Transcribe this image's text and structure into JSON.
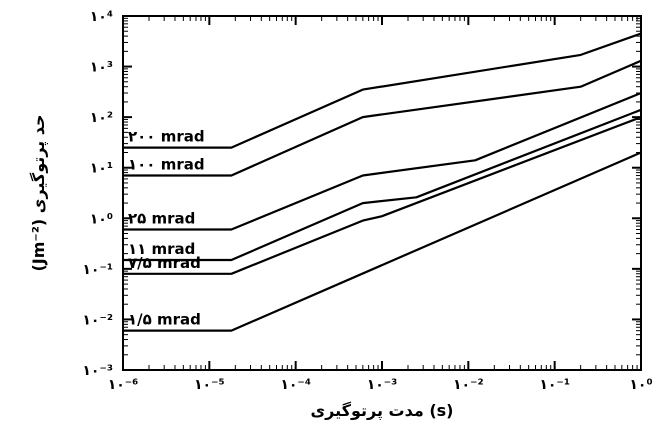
{
  "chart_data": {
    "type": "line",
    "title": "",
    "xlabel": "(s) مدت پرتوگیری",
    "ylabel": "حد پرتوگیری (Jm⁻²)",
    "xscale": "log",
    "yscale": "log",
    "xlim": [
      1e-06,
      1
    ],
    "ylim": [
      0.001,
      10000.0
    ],
    "grid": false,
    "x_ticks": [
      1e-06,
      1e-05,
      0.0001,
      0.001,
      0.01,
      0.1,
      1
    ],
    "x_tick_labels": [
      "۱۰⁻⁶",
      "۱۰⁻⁵",
      "۱۰⁻⁴",
      "۱۰⁻³",
      "۱۰⁻²",
      "۱۰⁻¹",
      "۱۰⁰"
    ],
    "y_ticks": [
      0.001,
      0.01,
      0.1,
      1,
      10,
      100,
      1000,
      10000
    ],
    "y_tick_labels": [
      "۱۰⁻³",
      "۱۰⁻²",
      "۱۰⁻¹",
      "۱۰⁰",
      "۱۰¹",
      "۱۰²",
      "۱۰³",
      "۱۰⁴"
    ],
    "series": [
      {
        "name": "۲۰۰ mrad",
        "x": [
          1e-06,
          1.8e-05,
          0.0006,
          0.2,
          1
        ],
        "y": [
          25,
          25,
          350,
          1700,
          4500
        ]
      },
      {
        "name": "۱۰۰ mrad",
        "x": [
          1e-06,
          1.8e-05,
          0.0006,
          0.2,
          1
        ],
        "y": [
          7,
          7,
          100,
          400,
          1300
        ]
      },
      {
        "name": "۲۵ mrad",
        "x": [
          1e-06,
          1.8e-05,
          0.0006,
          0.012,
          1
        ],
        "y": [
          0.6,
          0.6,
          7,
          14,
          300
        ]
      },
      {
        "name": "۱۱ mrad",
        "x": [
          1e-06,
          1.8e-05,
          0.0006,
          0.0025,
          1
        ],
        "y": [
          0.15,
          0.15,
          2,
          2.6,
          140
        ]
      },
      {
        "name": "۷/۵ mrad",
        "x": [
          1e-06,
          1.8e-05,
          0.0006,
          0.001,
          1
        ],
        "y": [
          0.08,
          0.08,
          0.9,
          1.1,
          100
        ]
      },
      {
        "name": "۱/۵ mrad",
        "x": [
          1e-06,
          1.8e-05,
          1
        ],
        "y": [
          0.006,
          0.006,
          20
        ]
      }
    ]
  }
}
